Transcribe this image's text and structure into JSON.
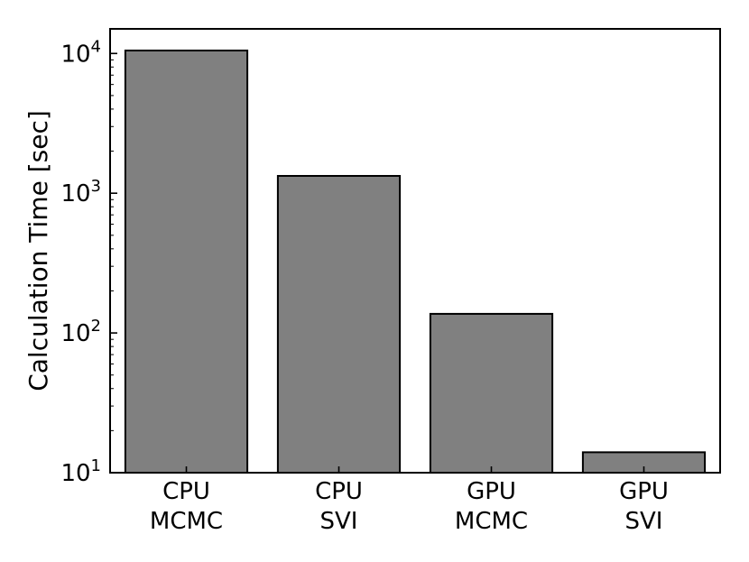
{
  "chart_data": {
    "type": "bar",
    "categories": [
      [
        "CPU",
        "MCMC"
      ],
      [
        "CPU",
        "SVI"
      ],
      [
        "GPU",
        "MCMC"
      ],
      [
        "GPU",
        "SVI"
      ]
    ],
    "values": [
      10500,
      1330,
      137,
      14
    ],
    "yscale": "log",
    "ylim": [
      10,
      15000
    ],
    "yticks": [
      {
        "value": 10,
        "base": "10",
        "exp": "1"
      },
      {
        "value": 100,
        "base": "10",
        "exp": "2"
      },
      {
        "value": 1000,
        "base": "10",
        "exp": "3"
      },
      {
        "value": 10000,
        "base": "10",
        "exp": "4"
      }
    ],
    "title": "",
    "xlabel": "",
    "ylabel": "Calculation Time [sec]",
    "grid": false,
    "bar_color": "#808080",
    "edge_color": "#000000"
  }
}
